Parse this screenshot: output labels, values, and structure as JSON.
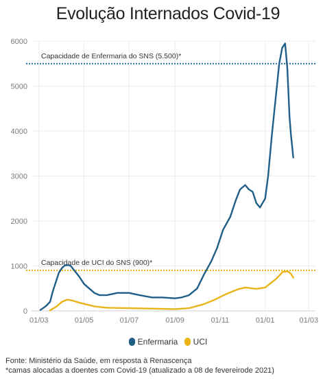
{
  "chart_data": {
    "type": "line",
    "title": "Evolução Internados Covid-19",
    "x_ticks": [
      "01/03",
      "01/05",
      "01/07",
      "01/09",
      "01/11",
      "01/01",
      "01/03"
    ],
    "ylim": [
      0,
      6000
    ],
    "y_ticks": [
      "0",
      "1000",
      "2000",
      "3000",
      "4000",
      "5000",
      "6000"
    ],
    "grid": true,
    "legend_position": "bottom",
    "reference_lines": [
      {
        "label": "Capacidade de Enfermaria do SNS (5.500)*",
        "value": 5500,
        "color": "#1f6b97"
      },
      {
        "label": "Capacidade de UCI do SNS (900)*",
        "value": 900,
        "color": "#e8b417"
      }
    ],
    "series": [
      {
        "name": "Enfermaria",
        "color": "#1f5f87",
        "x": [
          "2020-03-03",
          "2020-03-10",
          "2020-03-16",
          "2020-03-20",
          "2020-03-25",
          "2020-03-28",
          "2020-04-01",
          "2020-04-05",
          "2020-04-10",
          "2020-04-13",
          "2020-04-18",
          "2020-04-25",
          "2020-05-01",
          "2020-05-08",
          "2020-05-15",
          "2020-05-22",
          "2020-06-01",
          "2020-06-15",
          "2020-07-01",
          "2020-07-15",
          "2020-08-01",
          "2020-08-15",
          "2020-09-01",
          "2020-09-10",
          "2020-09-20",
          "2020-10-01",
          "2020-10-10",
          "2020-10-20",
          "2020-10-28",
          "2020-11-05",
          "2020-11-15",
          "2020-11-22",
          "2020-11-28",
          "2020-12-05",
          "2020-12-10",
          "2020-12-15",
          "2020-12-20",
          "2020-12-25",
          "2021-01-01",
          "2021-01-05",
          "2021-01-10",
          "2021-01-15",
          "2021-01-20",
          "2021-01-24",
          "2021-01-28",
          "2021-01-31",
          "2021-02-03",
          "2021-02-05",
          "2021-02-08"
        ],
        "values": [
          20,
          100,
          200,
          450,
          700,
          850,
          950,
          1010,
          1020,
          1000,
          900,
          750,
          600,
          500,
          400,
          350,
          350,
          400,
          400,
          350,
          300,
          300,
          280,
          300,
          350,
          500,
          800,
          1100,
          1400,
          1800,
          2100,
          2450,
          2700,
          2800,
          2700,
          2650,
          2400,
          2300,
          2500,
          3000,
          3900,
          4700,
          5500,
          5850,
          5950,
          5400,
          4300,
          3900,
          3410
        ]
      },
      {
        "name": "UCI",
        "color": "#e8b417",
        "x": [
          "2020-03-16",
          "2020-03-25",
          "2020-04-01",
          "2020-04-08",
          "2020-04-15",
          "2020-04-25",
          "2020-05-05",
          "2020-05-15",
          "2020-06-01",
          "2020-07-01",
          "2020-08-01",
          "2020-09-01",
          "2020-09-20",
          "2020-10-10",
          "2020-10-25",
          "2020-11-10",
          "2020-11-25",
          "2020-12-05",
          "2020-12-20",
          "2021-01-01",
          "2021-01-15",
          "2021-01-25",
          "2021-02-01",
          "2021-02-05",
          "2021-02-08"
        ],
        "values": [
          10,
          100,
          200,
          250,
          230,
          180,
          140,
          100,
          70,
          60,
          50,
          40,
          60,
          150,
          250,
          380,
          480,
          520,
          490,
          520,
          700,
          870,
          880,
          820,
          740
        ]
      }
    ]
  },
  "legend": {
    "enfermaria": "Enfermaria",
    "uci": "UCI"
  },
  "source": {
    "line1": "Fonte: Ministério da Saúde, em resposta à Renascença",
    "line2": "*camas alocadas a doentes com Covid-19 (atualizado a 08 de fevereirode 2021)"
  }
}
